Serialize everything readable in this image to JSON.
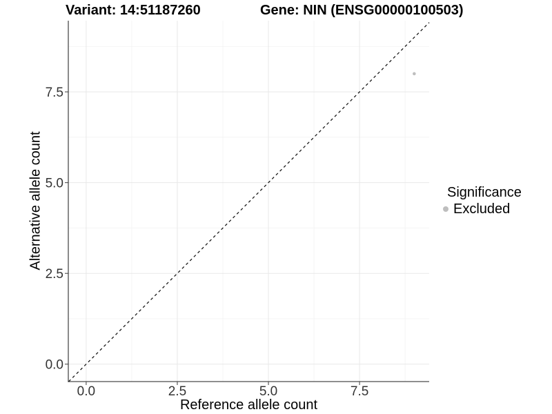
{
  "header": {
    "variant_title": "Variant: 14:51187260",
    "gene_title": "Gene: NIN (ENSG00000100503)"
  },
  "chart_data": {
    "type": "scatter",
    "xlabel": "Reference allele count",
    "ylabel": "Alternative allele count",
    "xlim": [
      -0.49,
      9.41
    ],
    "ylim": [
      -0.48,
      9.46
    ],
    "xticks": [
      0,
      2.5,
      5,
      7.5
    ],
    "yticks": [
      0,
      2.5,
      5,
      7.5
    ],
    "xtick_labels": [
      "0.0",
      "2.5",
      "5.0",
      "7.5"
    ],
    "ytick_labels": [
      "0.0",
      "2.5",
      "5.0",
      "7.5"
    ],
    "minor_xticks": [
      1.25,
      3.75,
      6.25,
      8.75
    ],
    "minor_yticks": [
      1.25,
      3.75,
      6.25,
      8.75
    ],
    "grid": "major and minor gridlines on white background, left and bottom axis lines only",
    "points": [
      {
        "x": 9,
        "y": 8,
        "series": "Excluded"
      }
    ],
    "reference_line": {
      "kind": "identity y=x",
      "style": "dashed",
      "color": "#1a1a1a"
    },
    "legend": {
      "title": "Significance",
      "position": "right-middle",
      "items": [
        {
          "label": "Excluded",
          "color": "#bebebe"
        }
      ]
    },
    "colors": {
      "point": "#bebebe",
      "axis_line": "#4a4a4a",
      "tick_mark": "#4a4a4a",
      "tick_text": "#333333",
      "grid_major": "#e8e8e8",
      "grid_minor": "#f4f4f4",
      "background": "#ffffff"
    }
  }
}
